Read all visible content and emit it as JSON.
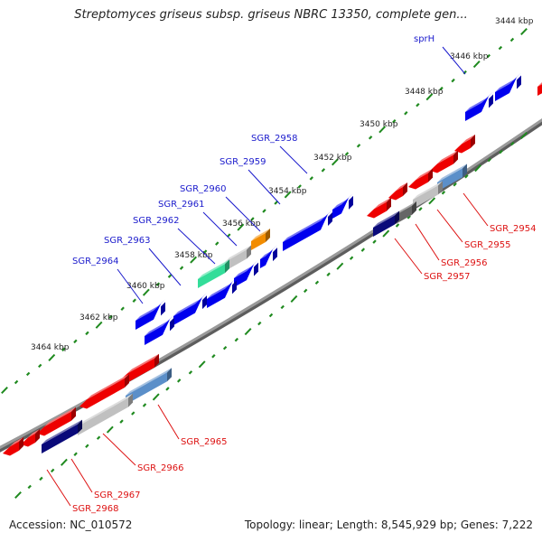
{
  "title": "Streptomyces griseus subsp. griseus NBRC 13350, complete gen...",
  "footer": {
    "accession": "Accession: NC_010572",
    "summary": "Topology: linear; Length: 8,545,929 bp; Genes: 7,222"
  },
  "colors": {
    "forward_gene": "#0000ee",
    "reverse_gene": "#ee0000",
    "forward_label": "#1a1acc",
    "reverse_label": "#dd1111",
    "backbone": "#808080",
    "tick": "#1f8a1f"
  },
  "scale_labels": [
    "3444 kbp",
    "3446 kbp",
    "3448 kbp",
    "3450 kbp",
    "3452 kbp",
    "3454 kbp",
    "3456 kbp",
    "3458 kbp",
    "3460 kbp",
    "3462 kbp",
    "3464 kbp"
  ],
  "forward_gene_labels": [
    "sprH",
    "SGR_2958",
    "SGR_2959",
    "SGR_2960",
    "SGR_2961",
    "SGR_2962",
    "SGR_2963",
    "SGR_2964"
  ],
  "reverse_gene_labels": [
    "SGR_2954",
    "SGR_2955",
    "SGR_2956",
    "SGR_2957",
    "SGR_2965",
    "SGR_2966",
    "SGR_2967",
    "SGR_2968"
  ]
}
